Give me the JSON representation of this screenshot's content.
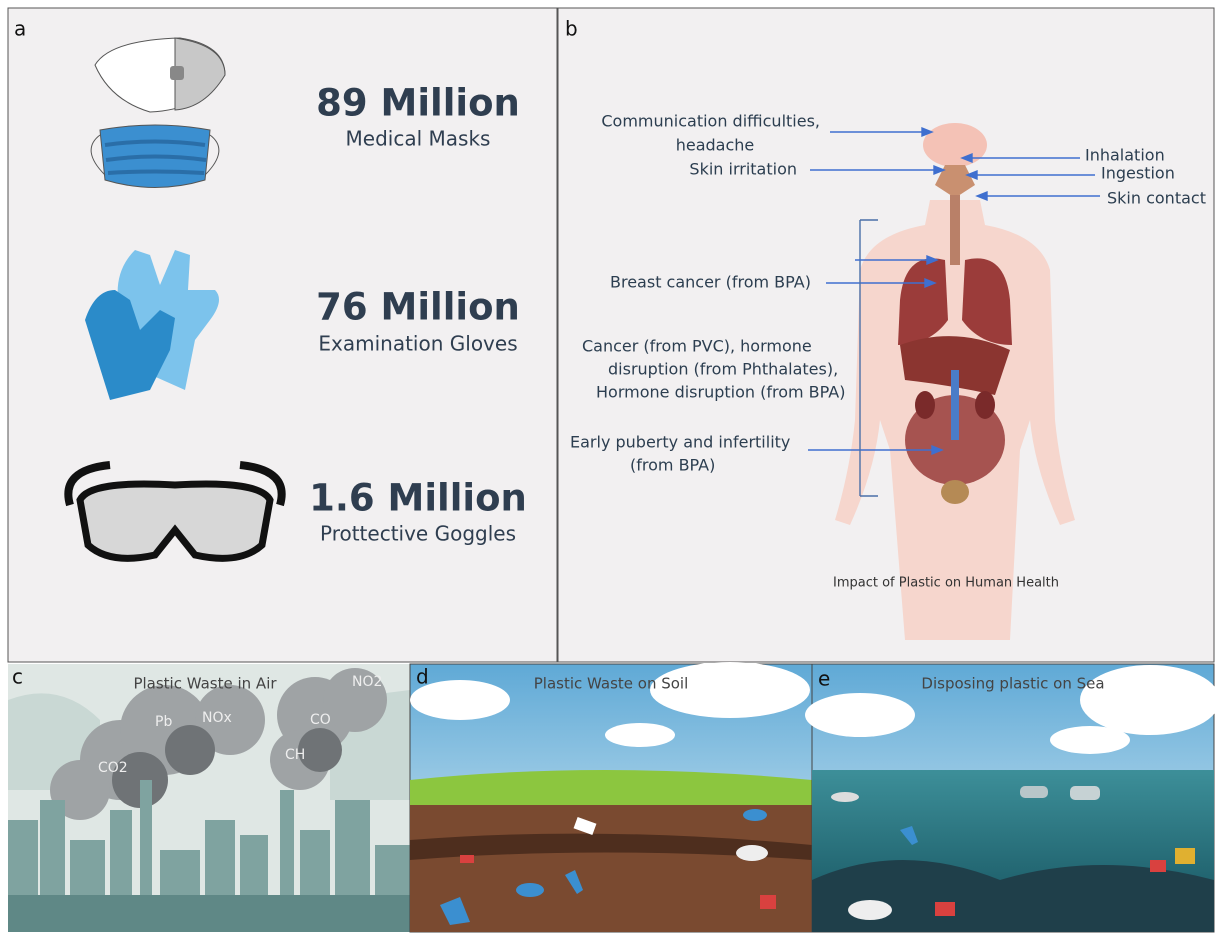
{
  "panel_a": {
    "label": "a",
    "items": [
      {
        "value": "89 Million",
        "name": "Medical Masks"
      },
      {
        "value": "76 Million",
        "name": "Examination Gloves"
      },
      {
        "value": "1.6 Million",
        "name": "Prottective Goggles"
      }
    ]
  },
  "panel_b": {
    "label": "b",
    "left_labels": [
      "Communication difficulties,",
      "headache",
      "Skin irritation",
      "Breast cancer (from BPA)",
      "Cancer (from PVC), hormone",
      "disruption (from Phthalates),",
      "Hormone disruption (from BPA)",
      "Early puberty and infertility",
      "(from BPA)"
    ],
    "right_labels": [
      "Inhalation",
      "Ingestion",
      "Skin contact"
    ],
    "caption": "Impact of Plastic on Human Health"
  },
  "panel_c": {
    "label": "c",
    "title": "Plastic Waste in Air",
    "gases": [
      "CO2",
      "Pb",
      "NOx",
      "CO",
      "NO2",
      "CH"
    ]
  },
  "panel_d": {
    "label": "d",
    "title": "Plastic Waste on Soil"
  },
  "panel_e": {
    "label": "e",
    "title": "Disposing plastic on Sea"
  }
}
